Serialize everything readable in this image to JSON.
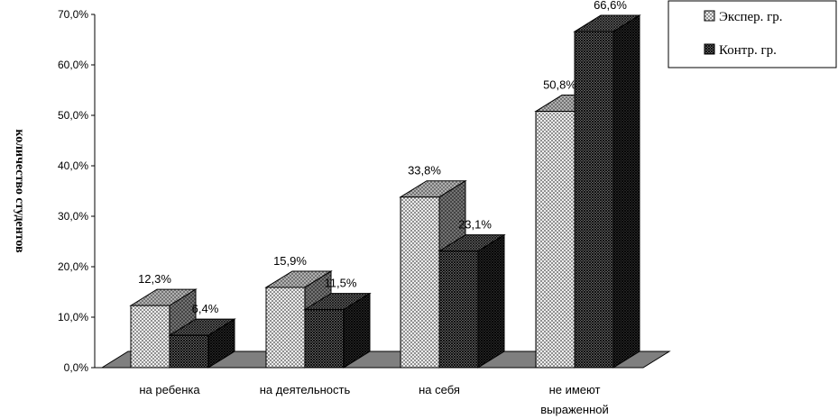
{
  "chart_data": {
    "type": "bar",
    "categories": [
      "на ребенка",
      "на деятельность",
      "на себя",
      "не имеют выраженной"
    ],
    "series": [
      {
        "name": "Экспер. гр.",
        "values": [
          12.3,
          15.9,
          33.8,
          50.8
        ],
        "labels": [
          "12,3%",
          "15,9%",
          "33,8%",
          "50,8%"
        ]
      },
      {
        "name": "Контр. гр.",
        "values": [
          6.4,
          11.5,
          23.1,
          66.6
        ],
        "labels": [
          "6,4%",
          "11,5%",
          "23,1%",
          "66,6%"
        ]
      }
    ],
    "y_ticks": [
      "0,0%",
      "10,0%",
      "20,0%",
      "30,0%",
      "40,0%",
      "50,0%",
      "60,0%",
      "70,0%"
    ],
    "ylim": [
      0,
      70
    ],
    "ylabel": "количество студентов",
    "xlabel": "",
    "title": "",
    "legend_position": "top-right",
    "style": "3d-clustered-column"
  }
}
